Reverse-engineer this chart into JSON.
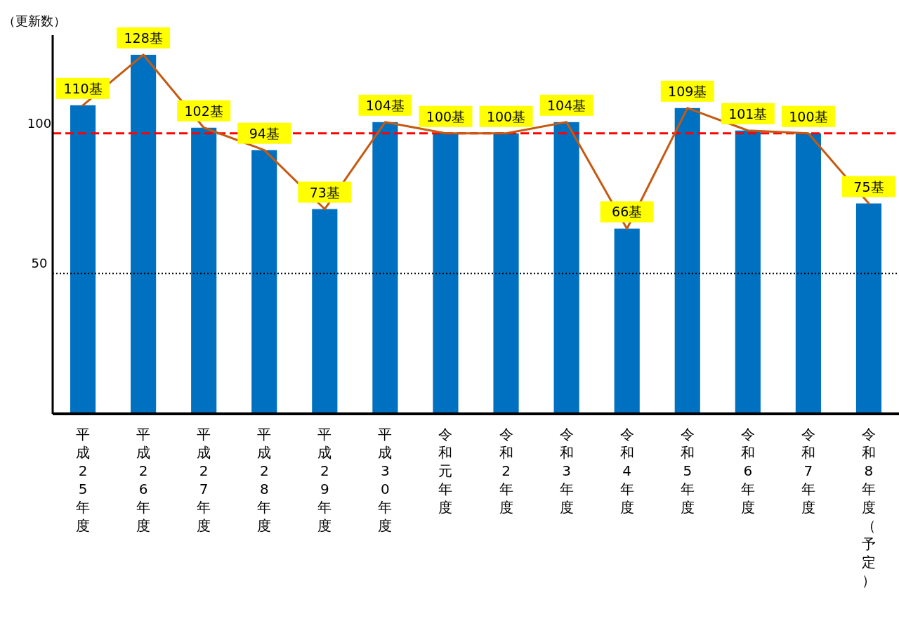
{
  "chart_data": {
    "type": "bar",
    "ylabel": "（更新数）",
    "categories": [
      "平成25年度",
      "平成26年度",
      "平成27年度",
      "平成28年度",
      "平成29年度",
      "平成30年度",
      "令和元年度",
      "令和2年度",
      "令和3年度",
      "令和4年度",
      "令和5年度",
      "令和6年度",
      "令和7年度",
      "令和8年度（予定）"
    ],
    "series": [
      {
        "color": "#0070c0",
        "values": [
          110,
          128,
          102,
          94,
          73,
          104,
          100,
          100,
          104,
          66,
          109,
          101,
          100,
          75
        ],
        "value_labels": [
          "110基",
          "128基",
          "102基",
          "94基",
          "73基",
          "104基",
          "100基",
          "100基",
          "104基",
          "66基",
          "109基",
          "101基",
          "100基",
          "75基"
        ]
      },
      {
        "type": "line",
        "color": "#c55a11",
        "values": [
          110,
          128,
          102,
          94,
          73,
          104,
          100,
          100,
          104,
          66,
          109,
          101,
          100,
          75
        ]
      }
    ],
    "ylim": [
      0,
      135
    ],
    "yticks": [
      50,
      100
    ],
    "ref_lines": [
      {
        "axis": "y",
        "value": 100,
        "color": "#ff0000",
        "line_style": "dashed"
      },
      {
        "axis": "y",
        "value": 50,
        "color": "#000000",
        "line_style": "dotted"
      }
    ]
  }
}
